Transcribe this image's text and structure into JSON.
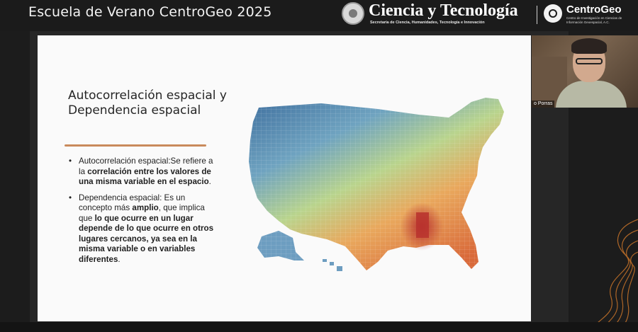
{
  "header": {
    "event_title": "Escuela de Verano CentroGeo 2025",
    "brand_title": "Ciencia y Tecnología",
    "brand_subtitle": "Secretaría de Ciencia, Humanidades, Tecnología e Innovación",
    "org_name": "CentroGeo",
    "org_subtitle": "Centro de Investigación en Ciencias de Información Geoespacial, A.C."
  },
  "slide": {
    "title": "Autocorrelación espacial y Dependencia espacial",
    "bullets": [
      {
        "parts": [
          {
            "text": "Autocorrelación espacial:Se refiere a la ",
            "bold": false
          },
          {
            "text": "correlación entre los valores de una misma variable en el espacio",
            "bold": true
          },
          {
            "text": ".",
            "bold": false
          }
        ]
      },
      {
        "parts": [
          {
            "text": "Dependencia espacial: Es un concepto más ",
            "bold": false
          },
          {
            "text": "amplio",
            "bold": true
          },
          {
            "text": ", que implica que ",
            "bold": false
          },
          {
            "text": "lo que ocurre en un lugar depende de lo que ocurre en otros lugares cercanos, ya sea en la misma variable o en variables diferentes",
            "bold": true
          },
          {
            "text": ".",
            "bold": false
          }
        ]
      }
    ],
    "map": {
      "description_icon": "us-county-choropleth-map",
      "colors": {
        "north": "#4a7fae",
        "mid": "#a9cf8e",
        "south": "#e08a4a",
        "hotspot": "#b8332e"
      }
    }
  },
  "participant": {
    "name_fragment": "o Porras"
  },
  "colors": {
    "accent_underline": "#c98a5c",
    "background": "#1c1c1c"
  }
}
